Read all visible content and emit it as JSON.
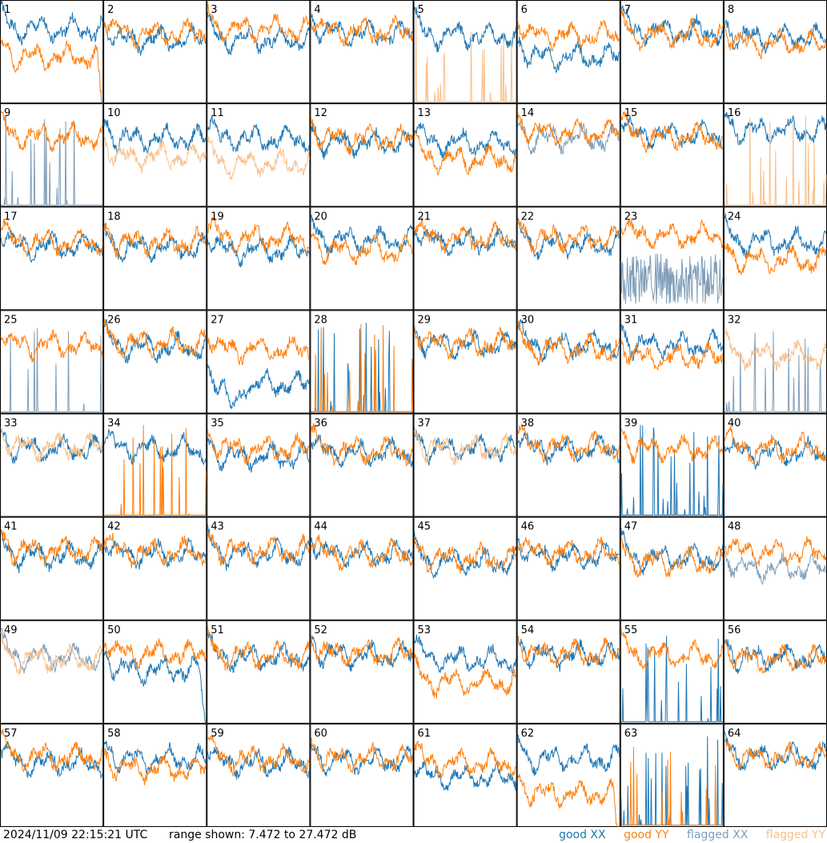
{
  "chart_data": {
    "type": "line",
    "grid": "8x8 small multiples",
    "panels": [
      {
        "id": "1",
        "xx": "good",
        "yy": "good",
        "xx_mean": 0.72,
        "yy_mean": 0.45,
        "yy_shape": "drop-end"
      },
      {
        "id": "2",
        "xx": "good",
        "yy": "good",
        "xx_mean": 0.62,
        "yy_mean": 0.68
      },
      {
        "id": "3",
        "xx": "good",
        "yy": "good",
        "xx_mean": 0.62,
        "yy_mean": 0.72
      },
      {
        "id": "4",
        "xx": "good",
        "yy": "good",
        "xx_mean": 0.68,
        "yy_mean": 0.7
      },
      {
        "id": "5",
        "xx": "good",
        "yy": "flagged",
        "xx_mean": 0.66,
        "yy_mean": 0.05,
        "yy_shape": "spikes"
      },
      {
        "id": "6",
        "xx": "good",
        "yy": "good",
        "xx_mean": 0.45,
        "yy_mean": 0.66
      },
      {
        "id": "7",
        "xx": "good",
        "yy": "good",
        "xx_mean": 0.7,
        "yy_mean": 0.66
      },
      {
        "id": "8",
        "xx": "good",
        "yy": "good",
        "xx_mean": 0.64,
        "yy_mean": 0.58
      },
      {
        "id": "9",
        "xx": "flagged",
        "yy": "good",
        "xx_mean": 0.12,
        "yy_mean": 0.68,
        "xx_shape": "spikes"
      },
      {
        "id": "10",
        "xx": "good",
        "yy": "flagged",
        "xx_mean": 0.66,
        "yy_mean": 0.48
      },
      {
        "id": "11",
        "xx": "good",
        "yy": "flagged",
        "xx_mean": 0.66,
        "yy_mean": 0.42
      },
      {
        "id": "12",
        "xx": "good",
        "yy": "good",
        "xx_mean": 0.62,
        "yy_mean": 0.66
      },
      {
        "id": "13",
        "xx": "good",
        "yy": "good",
        "xx_mean": 0.62,
        "yy_mean": 0.46
      },
      {
        "id": "14",
        "xx": "flagged",
        "yy": "good",
        "xx_mean": 0.66,
        "yy_mean": 0.72
      },
      {
        "id": "15",
        "xx": "good",
        "yy": "good",
        "xx_mean": 0.7,
        "yy_mean": 0.68
      },
      {
        "id": "16",
        "xx": "good",
        "yy": "flagged",
        "xx_mean": 0.74,
        "yy_mean": 0.03,
        "yy_shape": "spikes"
      },
      {
        "id": "17",
        "xx": "good",
        "yy": "good",
        "xx_mean": 0.62,
        "yy_mean": 0.66
      },
      {
        "id": "18",
        "xx": "good",
        "yy": "good",
        "xx_mean": 0.6,
        "yy_mean": 0.66
      },
      {
        "id": "19",
        "xx": "good",
        "yy": "good",
        "xx_mean": 0.58,
        "yy_mean": 0.7
      },
      {
        "id": "20",
        "xx": "good",
        "yy": "good",
        "xx_mean": 0.68,
        "yy_mean": 0.58
      },
      {
        "id": "21",
        "xx": "good",
        "yy": "good",
        "xx_mean": 0.66,
        "yy_mean": 0.7
      },
      {
        "id": "22",
        "xx": "good",
        "yy": "good",
        "xx_mean": 0.64,
        "yy_mean": 0.7
      },
      {
        "id": "23",
        "xx": "flagged",
        "yy": "good",
        "xx_mean": 0.3,
        "yy_mean": 0.72,
        "xx_shape": "noisy-low"
      },
      {
        "id": "24",
        "xx": "good",
        "yy": "good",
        "xx_mean": 0.66,
        "yy_mean": 0.48
      },
      {
        "id": "25",
        "xx": "flagged",
        "yy": "good",
        "xx_mean": 0.03,
        "yy_mean": 0.66,
        "xx_shape": "spikes"
      },
      {
        "id": "26",
        "xx": "good",
        "yy": "good",
        "xx_mean": 0.64,
        "yy_mean": 0.68
      },
      {
        "id": "27",
        "xx": "good",
        "yy": "good",
        "xx_mean": 0.28,
        "yy_mean": 0.62,
        "xx_shape": "dip"
      },
      {
        "id": "28",
        "xx": "good",
        "yy": "good",
        "xx_mean": 0.04,
        "yy_mean": 0.06,
        "yy_shape": "spikes",
        "xx_shape": "spikes"
      },
      {
        "id": "29",
        "xx": "good",
        "yy": "good",
        "xx_mean": 0.66,
        "yy_mean": 0.68
      },
      {
        "id": "30",
        "xx": "good",
        "yy": "good",
        "xx_mean": 0.66,
        "yy_mean": 0.62
      },
      {
        "id": "31",
        "xx": "good",
        "yy": "good",
        "xx_mean": 0.66,
        "yy_mean": 0.54
      },
      {
        "id": "32",
        "xx": "flagged",
        "yy": "flagged",
        "xx_mean": 0.05,
        "yy_mean": 0.56,
        "xx_shape": "spikes"
      },
      {
        "id": "33",
        "xx": "good",
        "yy": "flagged",
        "xx_mean": 0.66,
        "yy_mean": 0.68
      },
      {
        "id": "34",
        "xx": "good",
        "yy": "good",
        "xx_mean": 0.66,
        "yy_mean": 0.06,
        "yy_shape": "spikes"
      },
      {
        "id": "35",
        "xx": "good",
        "yy": "good",
        "xx_mean": 0.58,
        "yy_mean": 0.66
      },
      {
        "id": "36",
        "xx": "good",
        "yy": "good",
        "xx_mean": 0.62,
        "yy_mean": 0.64
      },
      {
        "id": "37",
        "xx": "good",
        "yy": "flagged",
        "xx_mean": 0.66,
        "yy_mean": 0.66
      },
      {
        "id": "38",
        "xx": "good",
        "yy": "good",
        "xx_mean": 0.66,
        "yy_mean": 0.68
      },
      {
        "id": "39",
        "xx": "good",
        "yy": "good",
        "xx_mean": 0.04,
        "yy_mean": 0.66,
        "xx_shape": "spikes"
      },
      {
        "id": "40",
        "xx": "good",
        "yy": "good",
        "xx_mean": 0.62,
        "yy_mean": 0.66
      },
      {
        "id": "41",
        "xx": "good",
        "yy": "good",
        "xx_mean": 0.62,
        "yy_mean": 0.68
      },
      {
        "id": "42",
        "xx": "good",
        "yy": "good",
        "xx_mean": 0.64,
        "yy_mean": 0.66
      },
      {
        "id": "43",
        "xx": "good",
        "yy": "good",
        "xx_mean": 0.64,
        "yy_mean": 0.68
      },
      {
        "id": "44",
        "xx": "good",
        "yy": "good",
        "xx_mean": 0.64,
        "yy_mean": 0.64
      },
      {
        "id": "45",
        "xx": "good",
        "yy": "good",
        "xx_mean": 0.56,
        "yy_mean": 0.6
      },
      {
        "id": "46",
        "xx": "good",
        "yy": "good",
        "xx_mean": 0.62,
        "yy_mean": 0.66
      },
      {
        "id": "47",
        "xx": "good",
        "yy": "good",
        "xx_mean": 0.6,
        "yy_mean": 0.56
      },
      {
        "id": "48",
        "xx": "flagged",
        "yy": "good",
        "xx_mean": 0.5,
        "yy_mean": 0.66
      },
      {
        "id": "49",
        "xx": "flagged",
        "yy": "flagged",
        "xx_mean": 0.64,
        "yy_mean": 0.62
      },
      {
        "id": "50",
        "xx": "good",
        "yy": "good",
        "xx_mean": 0.52,
        "yy_mean": 0.68,
        "xx_shape": "drop-end"
      },
      {
        "id": "51",
        "xx": "good",
        "yy": "good",
        "xx_mean": 0.64,
        "yy_mean": 0.66
      },
      {
        "id": "52",
        "xx": "good",
        "yy": "good",
        "xx_mean": 0.66,
        "yy_mean": 0.68
      },
      {
        "id": "53",
        "xx": "good",
        "yy": "good",
        "xx_mean": 0.62,
        "yy_mean": 0.4
      },
      {
        "id": "54",
        "xx": "good",
        "yy": "good",
        "xx_mean": 0.66,
        "yy_mean": 0.68
      },
      {
        "id": "55",
        "xx": "good",
        "yy": "good",
        "xx_mean": 0.06,
        "yy_mean": 0.66,
        "xx_shape": "spikes"
      },
      {
        "id": "56",
        "xx": "good",
        "yy": "good",
        "xx_mean": 0.64,
        "yy_mean": 0.62
      },
      {
        "id": "57",
        "xx": "good",
        "yy": "good",
        "xx_mean": 0.62,
        "yy_mean": 0.68
      },
      {
        "id": "58",
        "xx": "good",
        "yy": "good",
        "xx_mean": 0.66,
        "yy_mean": 0.56
      },
      {
        "id": "59",
        "xx": "good",
        "yy": "good",
        "xx_mean": 0.62,
        "yy_mean": 0.66
      },
      {
        "id": "60",
        "xx": "good",
        "yy": "good",
        "xx_mean": 0.64,
        "yy_mean": 0.66
      },
      {
        "id": "61",
        "xx": "good",
        "yy": "good",
        "xx_mean": 0.48,
        "yy_mean": 0.62
      },
      {
        "id": "62",
        "xx": "good",
        "yy": "good",
        "xx_mean": 0.66,
        "yy_mean": 0.32,
        "yy_shape": "drop-end"
      },
      {
        "id": "63",
        "xx": "good",
        "yy": "good",
        "xx_mean": 0.03,
        "yy_mean": 0.06,
        "yy_shape": "spikes",
        "xx_shape": "spikes"
      },
      {
        "id": "64",
        "xx": "good",
        "yy": "good",
        "xx_mean": 0.68,
        "yy_mean": 0.68
      }
    ]
  },
  "footer": {
    "timestamp": "2024/11/09 22:15:21 UTC",
    "range_text": "range shown: 7.472 to 27.472 dB"
  },
  "legend": {
    "good_xx": "good XX",
    "good_yy": "good YY",
    "flagged_xx": "flagged XX",
    "flagged_yy": "flagged YY"
  },
  "colors": {
    "good_xx": "#1f77b4",
    "good_yy": "#ff7f0e",
    "flagged_xx": "#7f9db8",
    "flagged_yy": "#f8c08a",
    "grid_line": "#000000"
  }
}
